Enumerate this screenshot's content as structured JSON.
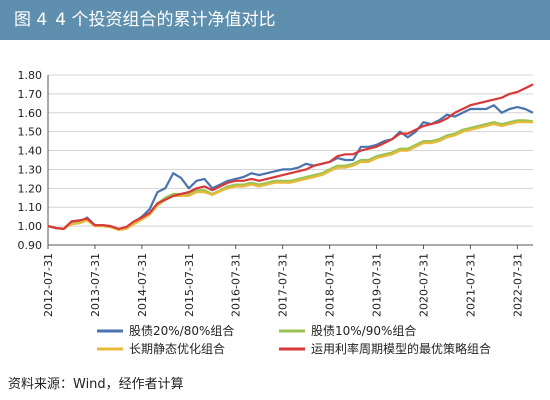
{
  "header": {
    "figure_number": "图 4",
    "title": "4 个投资组合的累计净值对比"
  },
  "colors": {
    "title_bar": "#5f8fae",
    "gridline": "#d4d4d4"
  },
  "source_note": "资料来源：Wind，经作者计算",
  "chart_data": {
    "type": "line",
    "title": "4 个投资组合的累计净值对比",
    "xlabel": "",
    "ylabel": "",
    "ylim": [
      0.9,
      1.8
    ],
    "yticks": [
      "0.90",
      "1.00",
      "1.10",
      "1.20",
      "1.30",
      "1.40",
      "1.50",
      "1.60",
      "1.70",
      "1.80"
    ],
    "xticks": [
      "2012-07-31",
      "2013-07-31",
      "2014-07-31",
      "2015-07-31",
      "2016-07-31",
      "2017-07-31",
      "2018-07-31",
      "2019-07-31",
      "2020-07-31",
      "2021-07-31",
      "2022-07-31"
    ],
    "x": [
      "2012-07",
      "2012-09",
      "2012-11",
      "2013-01",
      "2013-03",
      "2013-05",
      "2013-07",
      "2013-09",
      "2013-11",
      "2014-01",
      "2014-03",
      "2014-05",
      "2014-07",
      "2014-09",
      "2014-11",
      "2015-01",
      "2015-03",
      "2015-05",
      "2015-07",
      "2015-09",
      "2015-11",
      "2016-01",
      "2016-03",
      "2016-05",
      "2016-07",
      "2016-09",
      "2016-11",
      "2017-01",
      "2017-03",
      "2017-05",
      "2017-07",
      "2017-09",
      "2017-11",
      "2018-01",
      "2018-03",
      "2018-05",
      "2018-07",
      "2018-09",
      "2018-11",
      "2019-01",
      "2019-03",
      "2019-05",
      "2019-07",
      "2019-09",
      "2019-11",
      "2020-01",
      "2020-03",
      "2020-05",
      "2020-07",
      "2020-09",
      "2020-11",
      "2021-01",
      "2021-03",
      "2021-05",
      "2021-07",
      "2021-09",
      "2021-11",
      "2022-01",
      "2022-03",
      "2022-05",
      "2022-07",
      "2022-09",
      "2022-11"
    ],
    "grid": true,
    "legend_position": "bottom",
    "series": [
      {
        "name": "股债20%/80%组合",
        "color": "#4a74ad",
        "values": [
          1.0,
          0.99,
          0.985,
          1.02,
          1.02,
          1.045,
          1.005,
          1.005,
          1.0,
          0.985,
          0.99,
          1.02,
          1.05,
          1.09,
          1.18,
          1.2,
          1.28,
          1.255,
          1.2,
          1.24,
          1.25,
          1.2,
          1.22,
          1.24,
          1.25,
          1.26,
          1.28,
          1.27,
          1.28,
          1.29,
          1.3,
          1.3,
          1.31,
          1.33,
          1.32,
          1.33,
          1.34,
          1.36,
          1.35,
          1.35,
          1.42,
          1.42,
          1.43,
          1.45,
          1.46,
          1.5,
          1.47,
          1.5,
          1.55,
          1.54,
          1.56,
          1.59,
          1.58,
          1.6,
          1.62,
          1.62,
          1.62,
          1.64,
          1.6,
          1.62,
          1.63,
          1.62,
          1.6
        ]
      },
      {
        "name": "股债10%/90%组合",
        "color": "#9bc353",
        "values": [
          1.0,
          0.99,
          0.985,
          1.015,
          1.02,
          1.035,
          1.005,
          1.005,
          1.0,
          0.985,
          0.99,
          1.015,
          1.04,
          1.07,
          1.12,
          1.15,
          1.17,
          1.17,
          1.17,
          1.19,
          1.19,
          1.17,
          1.19,
          1.21,
          1.22,
          1.22,
          1.23,
          1.22,
          1.23,
          1.24,
          1.24,
          1.24,
          1.25,
          1.26,
          1.27,
          1.28,
          1.3,
          1.32,
          1.32,
          1.33,
          1.35,
          1.35,
          1.37,
          1.38,
          1.39,
          1.41,
          1.41,
          1.43,
          1.45,
          1.45,
          1.46,
          1.48,
          1.49,
          1.51,
          1.52,
          1.53,
          1.54,
          1.55,
          1.54,
          1.55,
          1.56,
          1.56,
          1.555
        ]
      },
      {
        "name": "长期静态优化组合",
        "color": "#e8b93c",
        "values": [
          1.0,
          0.99,
          0.985,
          1.01,
          1.015,
          1.03,
          1.0,
          1.0,
          0.995,
          0.98,
          0.985,
          1.01,
          1.035,
          1.06,
          1.11,
          1.14,
          1.16,
          1.16,
          1.16,
          1.18,
          1.18,
          1.165,
          1.185,
          1.2,
          1.21,
          1.21,
          1.22,
          1.21,
          1.22,
          1.23,
          1.23,
          1.23,
          1.24,
          1.25,
          1.26,
          1.27,
          1.29,
          1.31,
          1.31,
          1.32,
          1.34,
          1.34,
          1.36,
          1.37,
          1.38,
          1.4,
          1.4,
          1.42,
          1.44,
          1.44,
          1.45,
          1.47,
          1.48,
          1.5,
          1.51,
          1.52,
          1.53,
          1.54,
          1.53,
          1.54,
          1.55,
          1.55,
          1.55
        ]
      },
      {
        "name": "运用利率周期模型的最优策略组合",
        "color": "#d9383a",
        "values": [
          1.0,
          0.99,
          0.985,
          1.025,
          1.03,
          1.04,
          1.005,
          1.005,
          1.0,
          0.985,
          0.995,
          1.025,
          1.045,
          1.07,
          1.12,
          1.14,
          1.16,
          1.17,
          1.18,
          1.2,
          1.21,
          1.19,
          1.21,
          1.23,
          1.24,
          1.24,
          1.25,
          1.24,
          1.25,
          1.26,
          1.27,
          1.28,
          1.29,
          1.3,
          1.32,
          1.33,
          1.34,
          1.37,
          1.38,
          1.38,
          1.4,
          1.41,
          1.42,
          1.44,
          1.46,
          1.49,
          1.49,
          1.51,
          1.53,
          1.54,
          1.55,
          1.57,
          1.6,
          1.62,
          1.64,
          1.65,
          1.66,
          1.67,
          1.68,
          1.7,
          1.71,
          1.73,
          1.75
        ]
      }
    ]
  }
}
